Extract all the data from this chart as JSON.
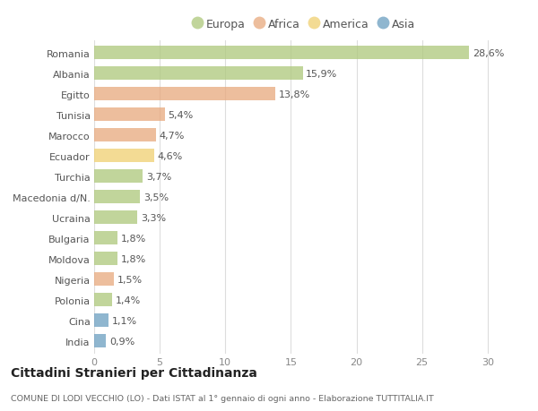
{
  "categories": [
    "Romania",
    "Albania",
    "Egitto",
    "Tunisia",
    "Marocco",
    "Ecuador",
    "Turchia",
    "Macedonia d/N.",
    "Ucraina",
    "Bulgaria",
    "Moldova",
    "Nigeria",
    "Polonia",
    "Cina",
    "India"
  ],
  "values": [
    28.6,
    15.9,
    13.8,
    5.4,
    4.7,
    4.6,
    3.7,
    3.5,
    3.3,
    1.8,
    1.8,
    1.5,
    1.4,
    1.1,
    0.9
  ],
  "labels": [
    "28,6%",
    "15,9%",
    "13,8%",
    "5,4%",
    "4,7%",
    "4,6%",
    "3,7%",
    "3,5%",
    "3,3%",
    "1,8%",
    "1,8%",
    "1,5%",
    "1,4%",
    "1,1%",
    "0,9%"
  ],
  "continents": [
    "Europa",
    "Europa",
    "Africa",
    "Africa",
    "Africa",
    "America",
    "Europa",
    "Europa",
    "Europa",
    "Europa",
    "Europa",
    "Africa",
    "Europa",
    "Asia",
    "Asia"
  ],
  "colors": {
    "Europa": "#adc87a",
    "Africa": "#e8a87c",
    "America": "#f0d070",
    "Asia": "#6a9ec0"
  },
  "legend_order": [
    "Europa",
    "Africa",
    "America",
    "Asia"
  ],
  "title1": "Cittadini Stranieri per Cittadinanza",
  "title2": "COMUNE DI LODI VECCHIO (LO) - Dati ISTAT al 1° gennaio di ogni anno - Elaborazione TUTTITALIA.IT",
  "xlim": [
    0,
    32
  ],
  "xticks": [
    0,
    5,
    10,
    15,
    20,
    25,
    30
  ],
  "background_color": "#ffffff",
  "grid_color": "#dddddd",
  "bar_height": 0.65,
  "label_fontsize": 8.0,
  "tick_fontsize": 8.0,
  "bar_alpha": 0.75
}
